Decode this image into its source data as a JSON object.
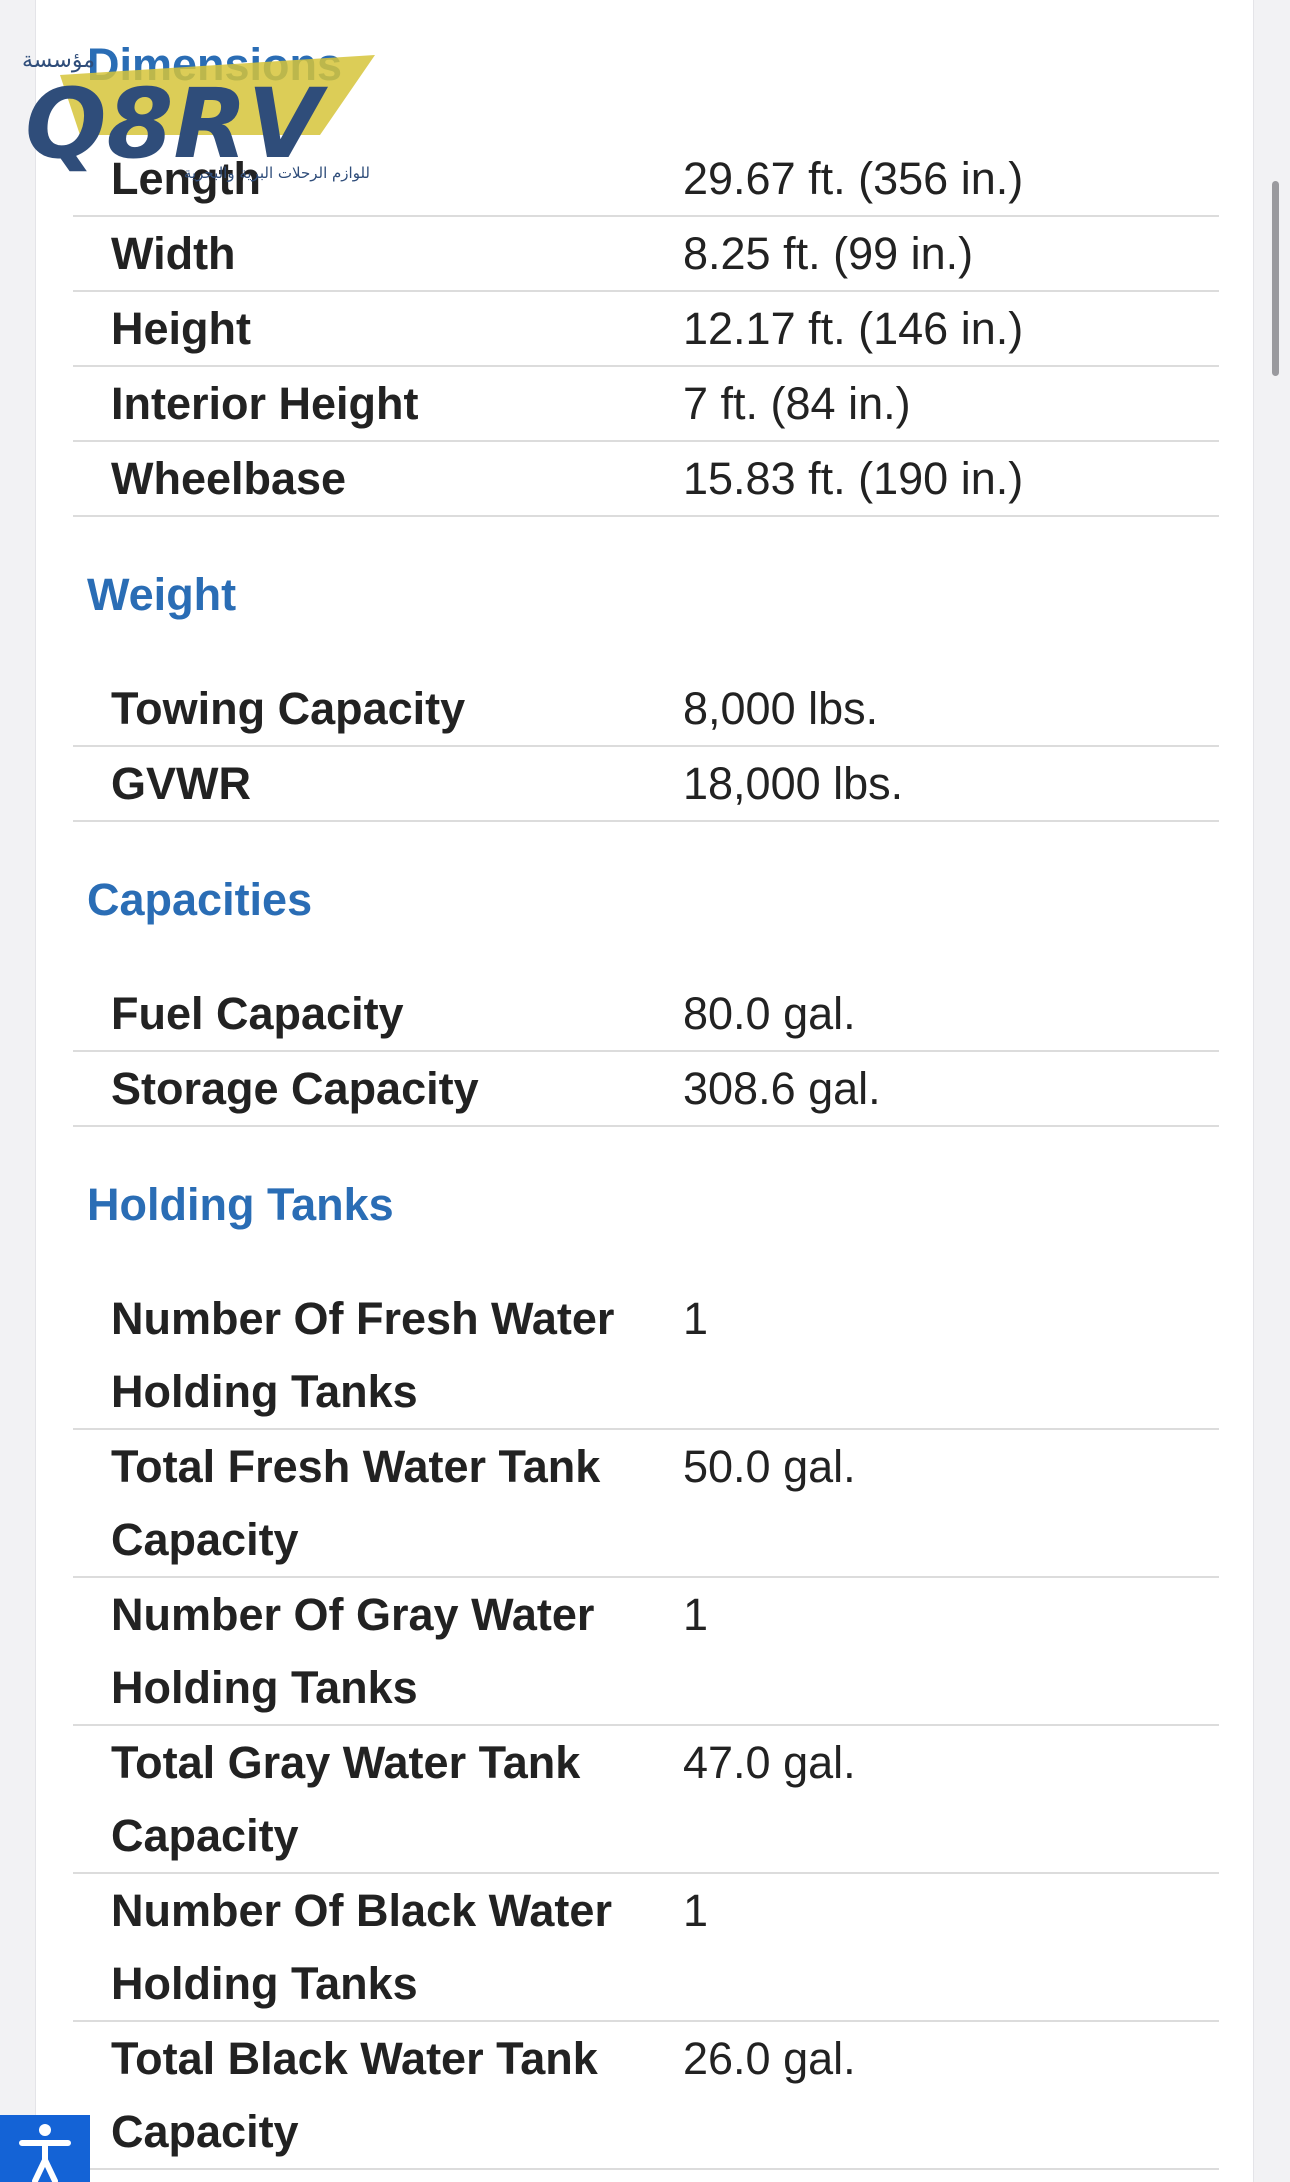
{
  "logo": {
    "brand": "Q8RV",
    "arabic_top": "مؤسسة",
    "arabic_tagline": "للوازم الرحلات البرية والبحرية"
  },
  "sections": [
    {
      "title": "Dimensions",
      "rows": [
        {
          "label": "Length",
          "value": "29.67 ft. (356 in.)"
        },
        {
          "label": "Width",
          "value": "8.25 ft. (99 in.)"
        },
        {
          "label": "Height",
          "value": "12.17 ft. (146 in.)"
        },
        {
          "label": "Interior Height",
          "value": "7 ft. (84 in.)"
        },
        {
          "label": "Wheelbase",
          "value": "15.83 ft. (190 in.)"
        }
      ]
    },
    {
      "title": "Weight",
      "rows": [
        {
          "label": "Towing Capacity",
          "value": "8,000 lbs."
        },
        {
          "label": "GVWR",
          "value": "18,000 lbs."
        }
      ]
    },
    {
      "title": "Capacities",
      "rows": [
        {
          "label": "Fuel Capacity",
          "value": "80.0 gal."
        },
        {
          "label": "Storage Capacity",
          "value": "308.6 gal."
        }
      ]
    },
    {
      "title": "Holding Tanks",
      "rows": [
        {
          "label": "Number Of Fresh Water Holding Tanks",
          "value": "1"
        },
        {
          "label": "Total Fresh Water Tank Capacity",
          "value": "50.0 gal."
        },
        {
          "label": "Number Of Gray Water Holding Tanks",
          "value": "1"
        },
        {
          "label": "Total Gray Water Tank Capacity",
          "value": "47.0 gal."
        },
        {
          "label": "Number Of Black Water Holding Tanks",
          "value": "1"
        },
        {
          "label": "Total Black Water Tank Capacity",
          "value": "26.0 gal."
        }
      ]
    }
  ]
}
